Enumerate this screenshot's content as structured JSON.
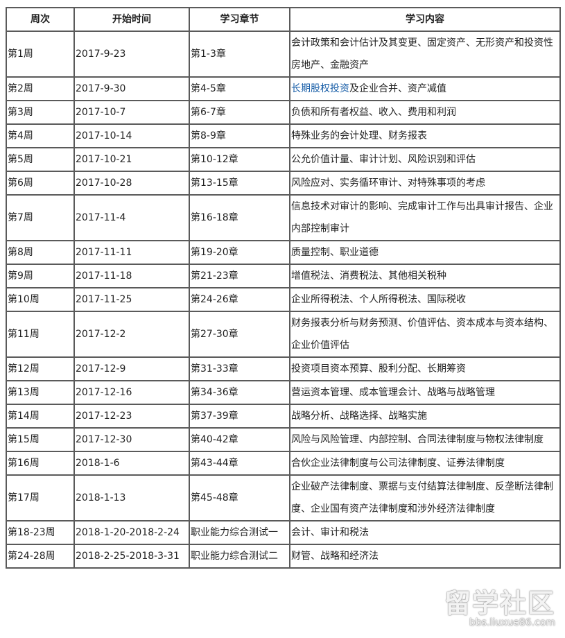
{
  "headers": [
    "周次",
    "开始时间",
    "学习章节",
    "学习内容"
  ],
  "rows": [
    {
      "week": "第1周",
      "start": "2017-9-23",
      "chapters": "第1-3章",
      "content": "会计政策和会计估计及其变更、固定资产、无形资产和投资性房地产、金融资产"
    },
    {
      "week": "第2周",
      "start": "2017-9-30",
      "chapters": "第4-5章",
      "content_link": "长期股权投资",
      "content": "及企业合并、资产减值"
    },
    {
      "week": "第3周",
      "start": "2017-10-7",
      "chapters": "第6-7章",
      "content": "负债和所有者权益、收入、费用和利润"
    },
    {
      "week": "第4周",
      "start": "2017-10-14",
      "chapters": "第8-9章",
      "content": "特殊业务的会计处理、财务报表"
    },
    {
      "week": "第5周",
      "start": "2017-10-21",
      "chapters": "第10-12章",
      "content": "公允价值计量、审计计划、风险识别和评估"
    },
    {
      "week": "第6周",
      "start": "2017-10-28",
      "chapters": "第13-15章",
      "content": "风险应对、实务循环审计、对特殊事项的考虑"
    },
    {
      "week": "第7周",
      "start": "2017-11-4",
      "chapters": "第16-18章",
      "content": "信息技术对审计的影响、完成审计工作与出具审计报告、企业内部控制审计"
    },
    {
      "week": "第8周",
      "start": "2017-11-11",
      "chapters": "第19-20章",
      "content": "质量控制、职业道德"
    },
    {
      "week": "第9周",
      "start": "2017-11-18",
      "chapters": "第21-23章",
      "content": "增值税法、消费税法、其他相关税种"
    },
    {
      "week": "第10周",
      "start": "2017-11-25",
      "chapters": "第24-26章",
      "content": "企业所得税法、个人所得税法、国际税收"
    },
    {
      "week": "第11周",
      "start": "2017-12-2",
      "chapters": "第27-30章",
      "content": "财务报表分析与财务预测、价值评估、资本成本与资本结构、企业价值评估"
    },
    {
      "week": "第12周",
      "start": "2017-12-9",
      "chapters": "第31-33章",
      "content": "投资项目资本预算、股利分配、长期筹资"
    },
    {
      "week": "第13周",
      "start": "2017-12-16",
      "chapters": "第34-36章",
      "content": "营运资本管理、成本管理会计、战略与战略管理"
    },
    {
      "week": "第14周",
      "start": "2017-12-23",
      "chapters": "第37-39章",
      "content": "战略分析、战略选择、战略实施"
    },
    {
      "week": "第15周",
      "start": "2017-12-30",
      "chapters": "第40-42章",
      "content": "风险与风险管理、内部控制、合同法律制度与物权法律制度"
    },
    {
      "week": "第16周",
      "start": "2018-1-6",
      "chapters": "第43-44章",
      "content": "合伙企业法律制度与公司法律制度、证券法律制度"
    },
    {
      "week": "第17周",
      "start": "2018-1-13",
      "chapters": "第45-48章",
      "content": "企业破产法律制度、票据与支付结算法律制度、反垄断法律制度、企业国有资产法律制度和涉外经济法律制度"
    },
    {
      "week": "第18-23周",
      "start": "2018-1-20-2018-2-24",
      "chapters": "职业能力综合测试一",
      "content": "会计、审计和税法"
    },
    {
      "week": "第24-28周",
      "start": "2018-2-25-2018-3-31",
      "chapters": "职业能力综合测试二",
      "content": "财管、战略和经济法"
    }
  ],
  "watermark": {
    "title": "留学社区",
    "url": "bbs.liuxue86.com"
  },
  "colors": {
    "link": "#1a5fa8",
    "border": "#5a5a5a"
  }
}
